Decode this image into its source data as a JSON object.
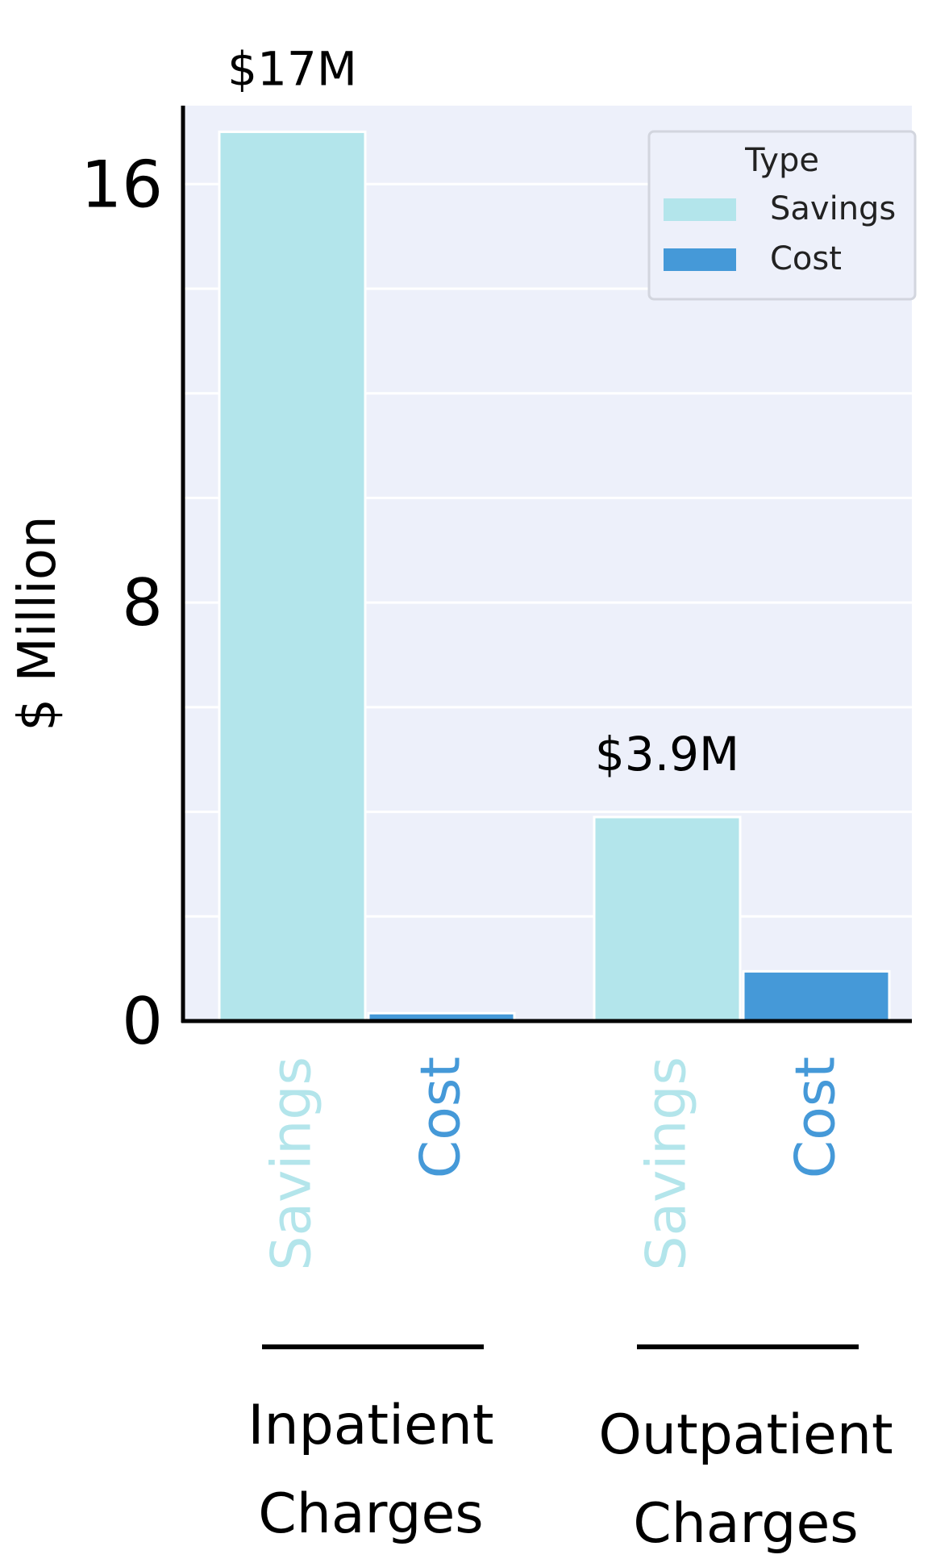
{
  "chart_data": {
    "type": "bar",
    "title": "",
    "ylabel": "$ Million",
    "xlabel": "",
    "ylim": [
      0,
      17.5
    ],
    "yticks": [
      {
        "value": 0,
        "label": "0"
      },
      {
        "value": 8,
        "label": "8"
      },
      {
        "value": 16,
        "label": "16"
      }
    ],
    "minor_grid_step": 2,
    "grid": true,
    "legend": {
      "title": "Type",
      "placement": "top-right",
      "entries": [
        {
          "label": "Savings",
          "color": "#b3e5eb"
        },
        {
          "label": "Cost",
          "color": "#4599d8"
        }
      ]
    },
    "groups": [
      {
        "label_lines": [
          "Inpatient",
          "Charges"
        ],
        "bars": [
          {
            "series": "Savings",
            "tick_label": "Savings",
            "value": 17.0,
            "data_label": "$17M",
            "color": "#b3e5eb"
          },
          {
            "series": "Cost",
            "tick_label": "Cost",
            "value": 0.15,
            "data_label": "",
            "color": "#4599d8"
          }
        ]
      },
      {
        "label_lines": [
          "Outpatient",
          "Charges"
        ],
        "bars": [
          {
            "series": "Savings",
            "tick_label": "Savings",
            "value": 3.9,
            "data_label": "$3.9M",
            "color": "#b3e5eb"
          },
          {
            "series": "Cost",
            "tick_label": "Cost",
            "value": 0.95,
            "data_label": "",
            "color": "#4599d8"
          }
        ]
      }
    ],
    "colors": {
      "plot_background": "#edf0fa",
      "grid": "#ffffff",
      "axis": "#000000"
    }
  }
}
